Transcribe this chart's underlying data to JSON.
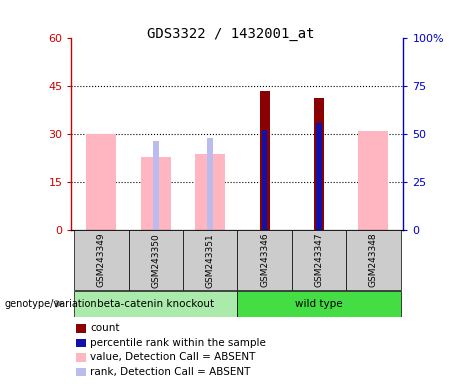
{
  "title": "GDS3322 / 1432001_at",
  "samples": [
    "GSM243349",
    "GSM243350",
    "GSM243351",
    "GSM243346",
    "GSM243347",
    "GSM243348"
  ],
  "ylim_left": [
    0,
    60
  ],
  "ylim_right": [
    0,
    100
  ],
  "yticks_left": [
    0,
    15,
    30,
    45,
    60
  ],
  "yticks_right": [
    0,
    25,
    50,
    75,
    100
  ],
  "left_tick_labels": [
    "0",
    "15",
    "30",
    "45",
    "60"
  ],
  "right_tick_labels": [
    "0",
    "25",
    "50",
    "75",
    "100%"
  ],
  "count_values": [
    null,
    null,
    null,
    43.5,
    41.5,
    null
  ],
  "rank_pct_values": [
    null,
    null,
    null,
    31.5,
    33.5,
    null
  ],
  "blue_square_values": [
    null,
    28.0,
    null,
    null,
    null,
    null
  ],
  "blue_square2_values": [
    null,
    null,
    29.0,
    null,
    null,
    null
  ],
  "absent_value_bars": [
    30,
    23,
    24,
    null,
    null,
    31
  ],
  "absent_rank_bars": [
    null,
    28.0,
    29.0,
    null,
    null,
    null
  ],
  "count_color": "#8B0000",
  "rank_color": "#1111AA",
  "absent_value_color": "#FFB6C1",
  "absent_rank_color": "#BBBBEE",
  "left_axis_color": "#CC0000",
  "right_axis_color": "#0000CC",
  "group1_label": "beta-catenin knockout",
  "group2_label": "wild type",
  "group1_color": "#AAEAAA",
  "group2_color": "#44DD44",
  "geno_label": "genotype/variation",
  "legend_items": [
    [
      "#8B0000",
      "count"
    ],
    [
      "#1111AA",
      "percentile rank within the sample"
    ],
    [
      "#FFB6C1",
      "value, Detection Call = ABSENT"
    ],
    [
      "#BBBBEE",
      "rank, Detection Call = ABSENT"
    ]
  ]
}
